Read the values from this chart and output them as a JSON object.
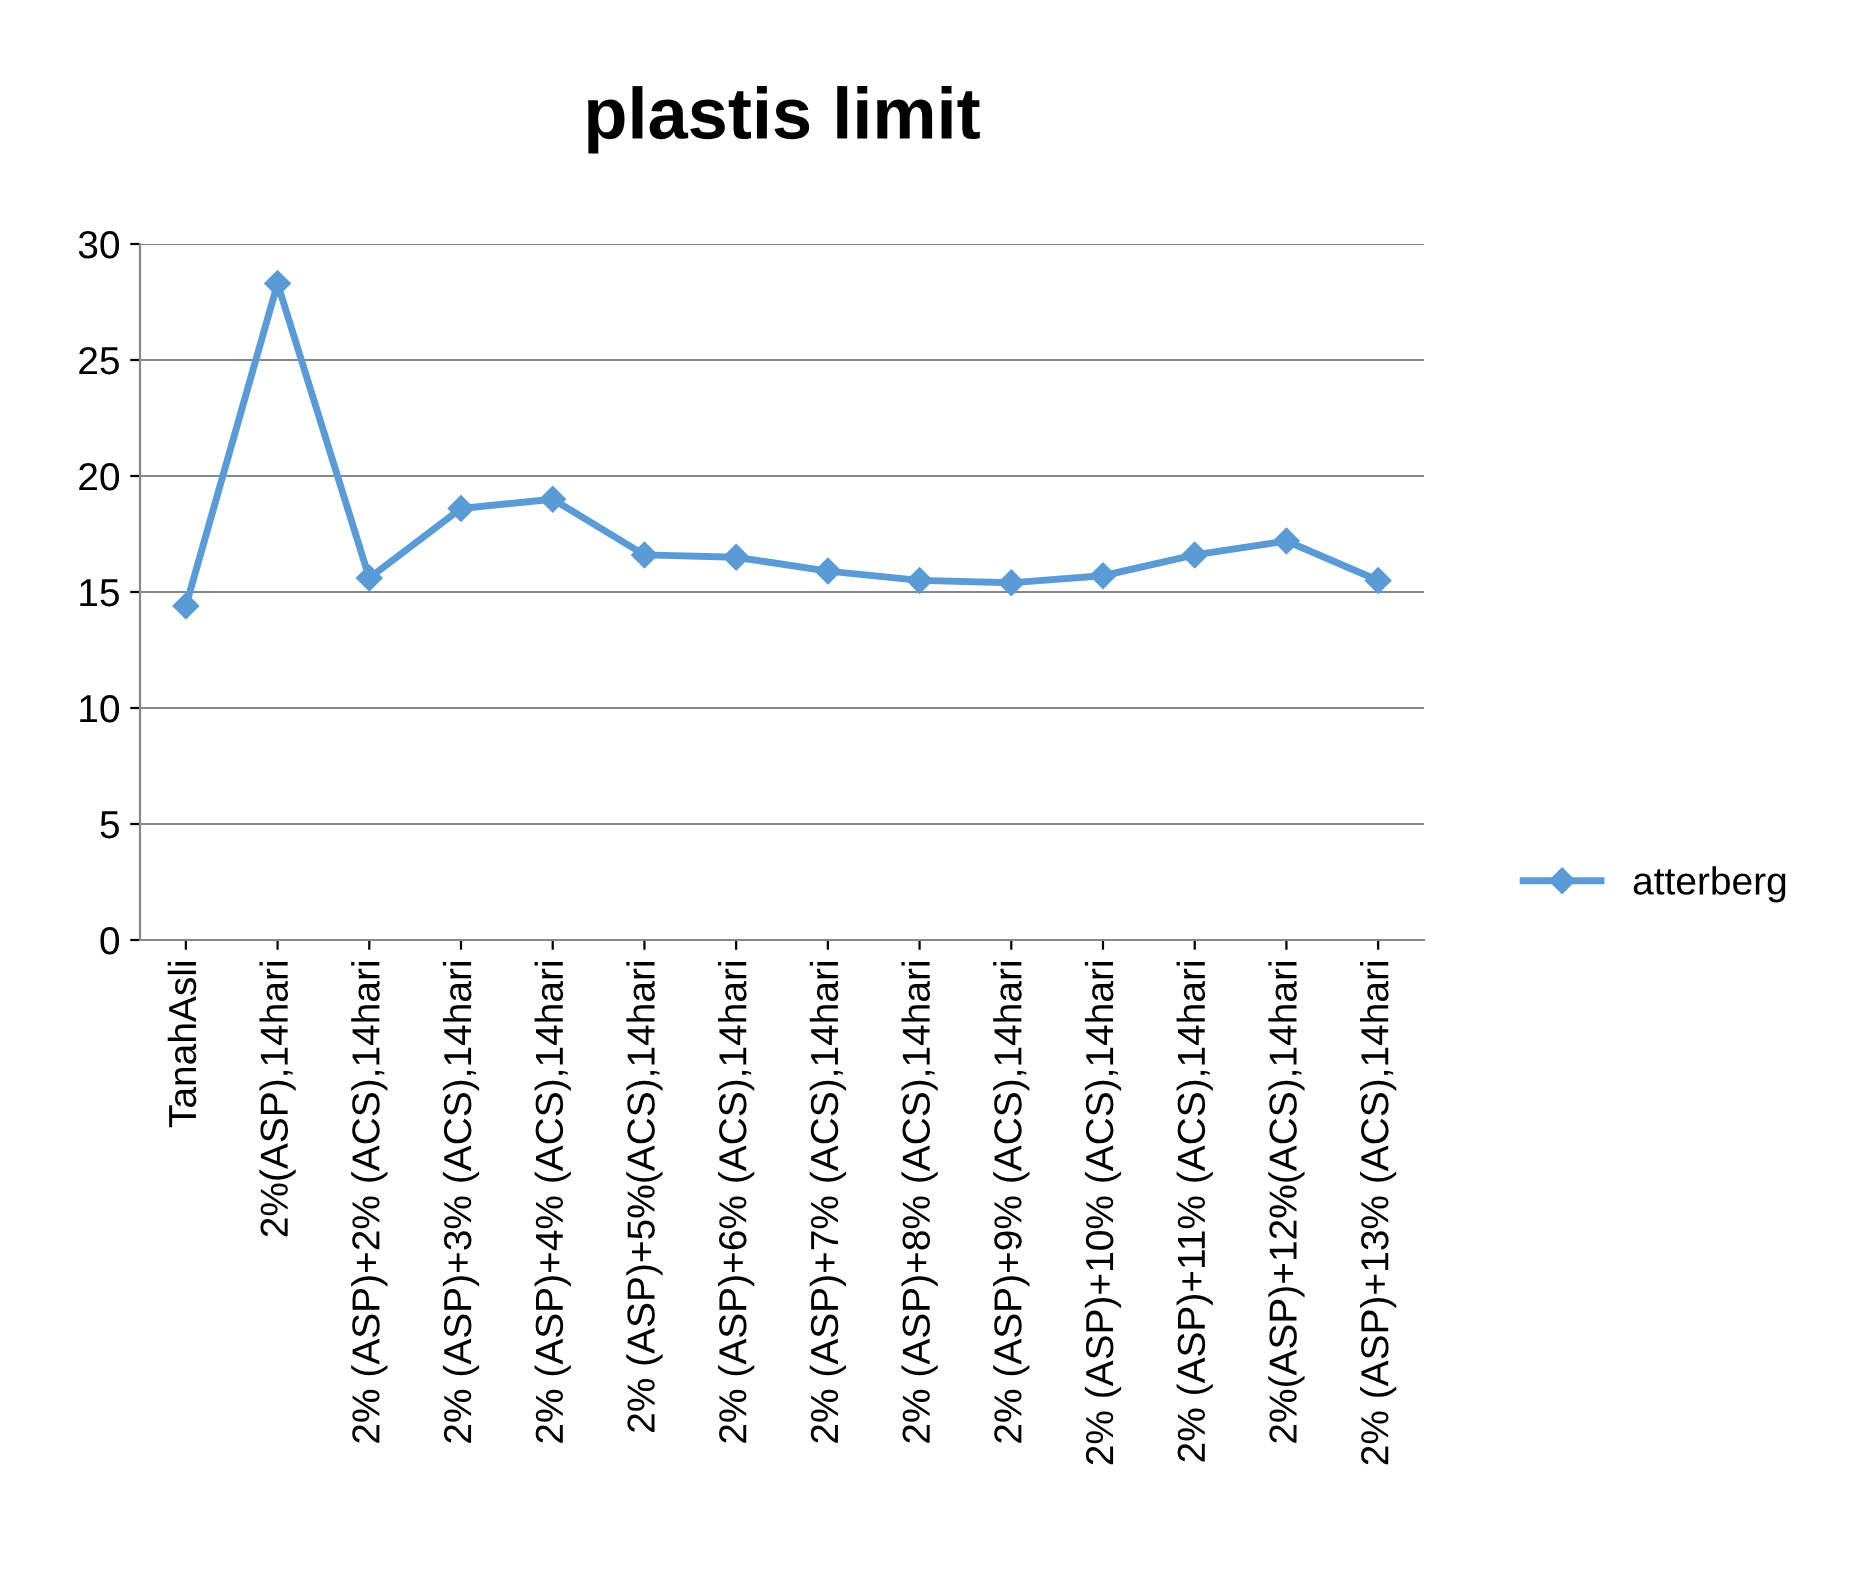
{
  "chart_data": {
    "type": "line",
    "title": "plastis limit",
    "categories": [
      "TanahAsli",
      "2%(ASP),14hari",
      "2% (ASP)+2% (ACS),14hari",
      "2% (ASP)+3% (ACS),14hari",
      "2% (ASP)+4% (ACS),14hari",
      "2% (ASP)+5%(ACS),14hari",
      "2% (ASP)+6% (ACS),14hari",
      "2% (ASP)+7% (ACS),14hari",
      "2% (ASP)+8% (ACS),14hari",
      "2% (ASP)+9% (ACS),14hari",
      "2% (ASP)+10% (ACS),14hari",
      "2% (ASP)+11% (ACS),14hari",
      "2%(ASP)+12%(ACS),14hari",
      "2% (ASP)+13% (ACS),14hari"
    ],
    "series": [
      {
        "name": "atterberg",
        "color": "#5b9bd5",
        "values": [
          14.4,
          28.3,
          15.6,
          18.6,
          19.0,
          16.6,
          16.5,
          15.9,
          15.5,
          15.4,
          15.7,
          16.6,
          17.2,
          15.5
        ]
      }
    ],
    "ylim": [
      0,
      30
    ],
    "yticks": [
      0,
      5,
      10,
      15,
      20,
      25,
      30
    ],
    "grid": "y",
    "legend": "right",
    "marker": "diamond",
    "line_style": "solid"
  }
}
